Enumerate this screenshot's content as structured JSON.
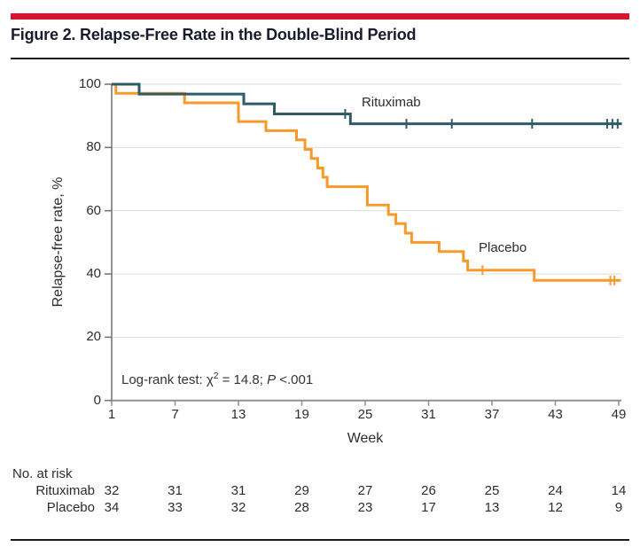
{
  "figure": {
    "title": "Figure 2. Relapse-Free Rate in the Double-Blind Period",
    "accent_color": "#d8142f"
  },
  "chart_data": {
    "type": "line",
    "subtype": "kaplan-meier-step",
    "title": "Figure 2. Relapse-Free Rate in the Double-Blind Period",
    "xlabel": "Week",
    "ylabel": "Relapse-free rate, %",
    "xlim": [
      1,
      49
    ],
    "ylim": [
      0,
      100
    ],
    "x_ticks": [
      1,
      7,
      13,
      19,
      25,
      31,
      37,
      43,
      49
    ],
    "y_ticks": [
      0,
      20,
      40,
      60,
      80,
      100
    ],
    "grid": "horizontal-light",
    "legend_position": "inline-labels",
    "annotation": {
      "before_sup": "Log-rank test: χ",
      "sup": "2",
      "mid": " = 14.8; ",
      "p": "P",
      "after": " <.001"
    },
    "series": [
      {
        "name": "Placebo",
        "color": "#f7992b",
        "label_pos": {
          "week": 35.74,
          "value": 50.7
        },
        "steps": [
          [
            1,
            100
          ],
          [
            1.4,
            97.1
          ],
          [
            7.9,
            94.1
          ],
          [
            13.0,
            88.2
          ],
          [
            15.6,
            85.3
          ],
          [
            18.5,
            82.4
          ],
          [
            19.3,
            79.4
          ],
          [
            19.9,
            76.5
          ],
          [
            20.5,
            73.5
          ],
          [
            21.0,
            70.6
          ],
          [
            21.4,
            67.6
          ],
          [
            25.2,
            61.8
          ],
          [
            27.2,
            58.8
          ],
          [
            27.9,
            55.9
          ],
          [
            28.8,
            52.9
          ],
          [
            29.4,
            50.0
          ],
          [
            32.0,
            47.1
          ],
          [
            34.3,
            44.1
          ],
          [
            34.7,
            41.2
          ],
          [
            41.0,
            38.0
          ]
        ],
        "censor_marks": [
          [
            36.1,
            41.2
          ],
          [
            48.2,
            38.0
          ],
          [
            48.6,
            38.0
          ]
        ],
        "end_week": 49.2
      },
      {
        "name": "Rituximab",
        "color": "#2e5b67",
        "label_pos": {
          "week": 24.66,
          "value": 96.6
        },
        "steps": [
          [
            1,
            100
          ],
          [
            3.6,
            96.9
          ],
          [
            13.5,
            93.8
          ],
          [
            16.4,
            90.6
          ],
          [
            23.6,
            87.5
          ]
        ],
        "censor_marks": [
          [
            23.1,
            90.6
          ],
          [
            28.9,
            87.5
          ],
          [
            33.2,
            87.5
          ],
          [
            40.8,
            87.5
          ],
          [
            47.9,
            87.5
          ],
          [
            48.4,
            87.5
          ],
          [
            48.9,
            87.5
          ]
        ],
        "end_week": 49.3
      }
    ]
  },
  "risk_table": {
    "heading": "No. at risk",
    "weeks": [
      1,
      7,
      13,
      19,
      25,
      31,
      37,
      43,
      49
    ],
    "rows": [
      {
        "label": "Rituximab",
        "values": [
          32,
          31,
          31,
          29,
          27,
          26,
          25,
          24,
          14
        ]
      },
      {
        "label": "Placebo",
        "values": [
          34,
          33,
          32,
          28,
          23,
          17,
          13,
          12,
          9
        ]
      }
    ]
  }
}
